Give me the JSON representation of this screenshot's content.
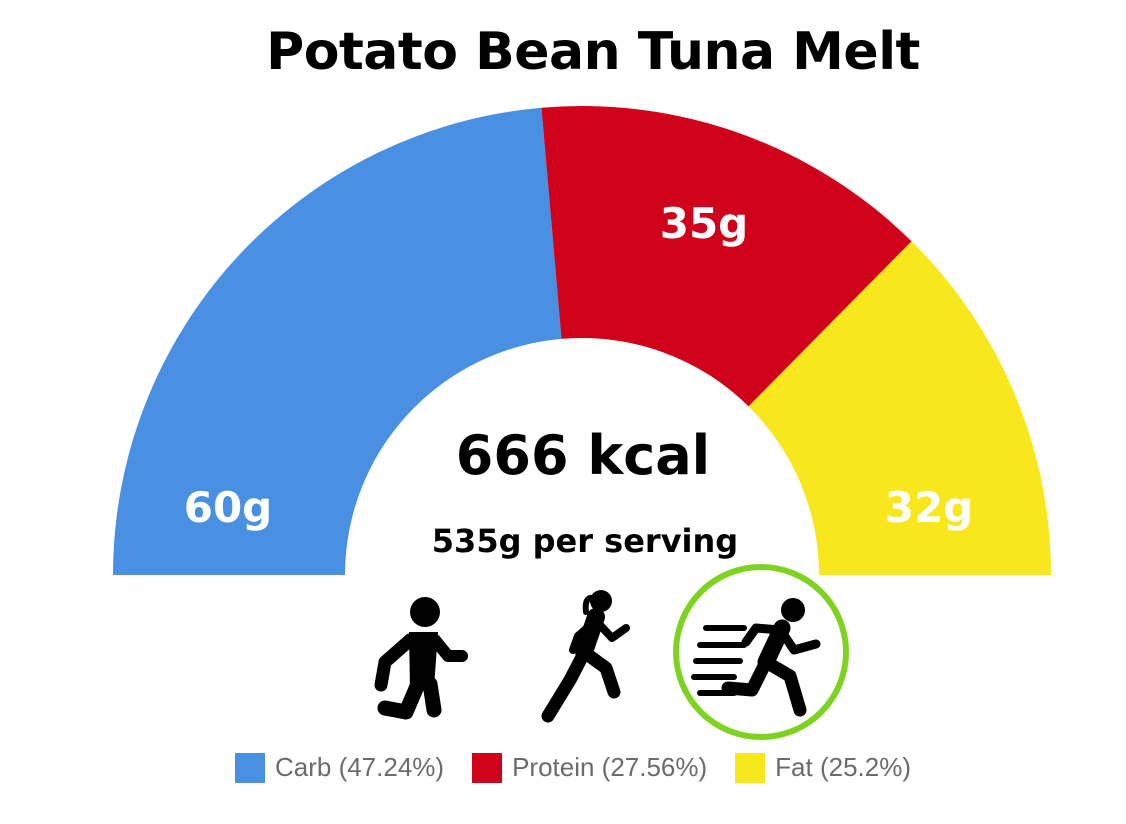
{
  "chart_data": {
    "type": "pie",
    "title": "Potato Bean Tuna Melt",
    "center_primary": "666 kcal",
    "center_secondary": "535g per serving",
    "series": [
      {
        "name": "Carb",
        "value": 60,
        "label": "60g",
        "percent": 47.24,
        "legend": "Carb (47.24%)",
        "color": "#4a90e2"
      },
      {
        "name": "Protein",
        "value": 35,
        "label": "35g",
        "percent": 27.56,
        "legend": "Protein (27.56%)",
        "color": "#d0021b"
      },
      {
        "name": "Fat",
        "value": 32,
        "label": "32g",
        "percent": 25.2,
        "legend": "Fat (25.2%)",
        "color": "#f8e71c"
      }
    ],
    "legend_placement": "bottom"
  },
  "activities": [
    {
      "icon": "walking-icon",
      "highlighted": false
    },
    {
      "icon": "jogging-icon",
      "highlighted": false
    },
    {
      "icon": "running-fast-icon",
      "highlighted": true
    }
  ],
  "highlight_color": "#7ed321"
}
